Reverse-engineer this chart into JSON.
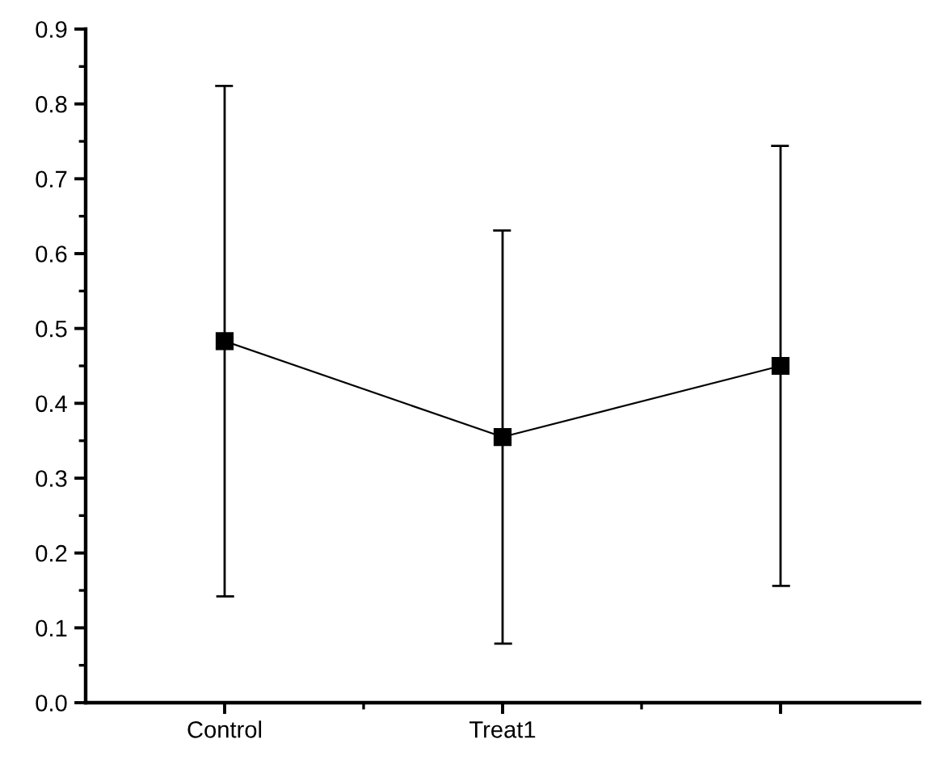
{
  "chart_data": {
    "type": "line",
    "categories": [
      "Control",
      "Treat1",
      null
    ],
    "values": [
      0.483,
      0.355,
      0.45
    ],
    "errors": [
      0.341,
      0.276,
      0.294
    ],
    "color": "#000000",
    "ylim": [
      0,
      0.9
    ],
    "yticks": [
      {
        "value": 0,
        "label": "0.0"
      },
      {
        "value": 0.05,
        "label": null
      },
      0.1,
      {
        "value": 0.15,
        "label": null
      },
      0.2,
      {
        "value": 0.25,
        "label": null
      },
      0.3,
      {
        "value": 0.35,
        "label": null
      },
      0.4,
      {
        "value": 0.45,
        "label": null
      },
      0.5,
      {
        "value": 0.55,
        "label": null
      },
      0.6,
      {
        "value": 0.65,
        "label": null
      },
      0.7,
      {
        "value": 0.75,
        "label": null
      },
      0.8,
      {
        "value": 0.85,
        "label": null
      },
      0.9
    ],
    "marker": "square",
    "line_style": "solid"
  }
}
